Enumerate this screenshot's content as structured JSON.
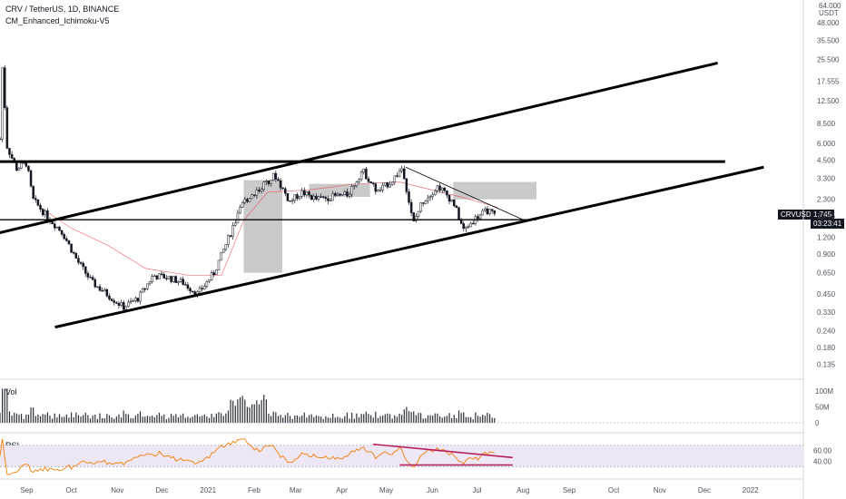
{
  "header": {
    "title": "CRV / TetherUS, 1D, BINANCE",
    "indicator": "CM_Enhanced_Ichimoku-V5"
  },
  "price_axis": {
    "currency": "USDT",
    "top_label": "64.000"
  },
  "price_tag": {
    "symbol": "CRVUSDT",
    "price": "1.745",
    "countdown": "03:23:41"
  },
  "panes": {
    "volume_label": "Vol",
    "rsi_label": "RSI"
  },
  "colors": {
    "candle": "#131722",
    "trendline": "#000000",
    "cloud": "#9e9e9e",
    "kijun": "#f23645",
    "rsi_line": "#f57c00",
    "rsi_band": "#ede7f6",
    "rsi_trend": "#b71c5a"
  },
  "chart_data": [
    {
      "type": "candlestick",
      "title": "CRV / TetherUS, 1D, BINANCE",
      "scale": "log",
      "ylabels": [
        "48.000",
        "35.500",
        "25.500",
        "17.555",
        "12.500",
        "8.500",
        "6.000",
        "4.500",
        "3.300",
        "2.300",
        "1.745",
        "1.200",
        "0.900",
        "0.650",
        "0.450",
        "0.330",
        "0.240",
        "0.180",
        "0.135"
      ],
      "xlabels": [
        "Sep",
        "Oct",
        "Nov",
        "Dec",
        "2021",
        "Feb",
        "Mar",
        "Apr",
        "May",
        "Jun",
        "Jul",
        "Aug",
        "Sep",
        "Oct",
        "Nov",
        "Dec",
        "2022"
      ],
      "x_range": [
        "2020-08-14",
        "2022-01-10"
      ],
      "price_series": [
        {
          "date": "2020-08-14",
          "close": 6.5
        },
        {
          "date": "2020-08-16",
          "close": 30.0
        },
        {
          "date": "2020-08-18",
          "close": 6.0
        },
        {
          "date": "2020-08-25",
          "close": 3.9
        },
        {
          "date": "2020-09-01",
          "close": 4.3
        },
        {
          "date": "2020-09-05",
          "close": 2.3
        },
        {
          "date": "2020-09-15",
          "close": 1.7
        },
        {
          "date": "2020-09-25",
          "close": 1.3
        },
        {
          "date": "2020-10-05",
          "close": 0.8
        },
        {
          "date": "2020-10-15",
          "close": 0.55
        },
        {
          "date": "2020-10-25",
          "close": 0.45
        },
        {
          "date": "2020-11-05",
          "close": 0.36
        },
        {
          "date": "2020-11-15",
          "close": 0.42
        },
        {
          "date": "2020-11-25",
          "close": 0.62
        },
        {
          "date": "2020-12-05",
          "close": 0.6
        },
        {
          "date": "2020-12-15",
          "close": 0.55
        },
        {
          "date": "2020-12-25",
          "close": 0.45
        },
        {
          "date": "2021-01-05",
          "close": 0.65
        },
        {
          "date": "2021-01-15",
          "close": 1.2
        },
        {
          "date": "2021-01-25",
          "close": 2.2
        },
        {
          "date": "2021-02-05",
          "close": 2.8
        },
        {
          "date": "2021-02-15",
          "close": 3.5
        },
        {
          "date": "2021-02-25",
          "close": 2.2
        },
        {
          "date": "2021-03-05",
          "close": 2.6
        },
        {
          "date": "2021-03-15",
          "close": 2.3
        },
        {
          "date": "2021-03-25",
          "close": 2.4
        },
        {
          "date": "2021-04-05",
          "close": 2.5
        },
        {
          "date": "2021-04-15",
          "close": 3.8
        },
        {
          "date": "2021-04-25",
          "close": 2.6
        },
        {
          "date": "2021-05-05",
          "close": 3.2
        },
        {
          "date": "2021-05-12",
          "close": 4.0
        },
        {
          "date": "2021-05-19",
          "close": 1.5
        },
        {
          "date": "2021-05-25",
          "close": 2.2
        },
        {
          "date": "2021-06-05",
          "close": 2.9
        },
        {
          "date": "2021-06-15",
          "close": 2.2
        },
        {
          "date": "2021-06-22",
          "close": 1.35
        },
        {
          "date": "2021-07-01",
          "close": 1.7
        },
        {
          "date": "2021-07-08",
          "close": 1.9
        },
        {
          "date": "2021-07-13",
          "close": 1.745
        }
      ],
      "trendlines": [
        {
          "name": "channel-upper",
          "from": {
            "date": "2020-08-08",
            "price": 1.25
          },
          "to": {
            "date": "2021-12-10",
            "price": 24.0
          }
        },
        {
          "name": "channel-lower",
          "from": {
            "date": "2020-09-20",
            "price": 0.255
          },
          "to": {
            "date": "2022-01-10",
            "price": 4.0
          }
        },
        {
          "name": "horizontal-resistance",
          "from": {
            "date": "2020-08-01",
            "price": 4.4
          },
          "to": {
            "date": "2021-12-15",
            "price": 4.4
          }
        },
        {
          "name": "horizontal-support",
          "from": {
            "date": "2020-08-10",
            "price": 1.62
          },
          "to": {
            "date": "2021-08-10",
            "price": 1.62
          }
        },
        {
          "name": "descending-resistance",
          "from": {
            "date": "2021-05-14",
            "price": 4.0
          },
          "to": {
            "date": "2021-08-01",
            "price": 1.62
          }
        }
      ]
    },
    {
      "type": "bar",
      "title": "Vol",
      "ylabels": [
        "100M",
        "50M",
        "0"
      ],
      "ylim": [
        0,
        115
      ],
      "unit": "M"
    },
    {
      "type": "line",
      "title": "RSI",
      "ylabels": [
        "60.00",
        "40.00"
      ],
      "ylim": [
        10,
        85
      ],
      "bands": [
        70,
        30
      ],
      "trendlines": [
        {
          "name": "rsi-descending",
          "from": {
            "date": "2021-04-22",
            "rsi": 72
          },
          "to": {
            "date": "2021-07-25",
            "rsi": 47
          }
        },
        {
          "name": "rsi-support",
          "from": {
            "date": "2021-05-10",
            "rsi": 33
          },
          "to": {
            "date": "2021-07-25",
            "rsi": 33
          }
        }
      ]
    }
  ]
}
